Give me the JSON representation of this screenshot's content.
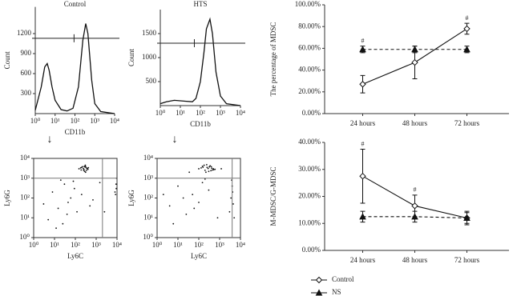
{
  "chart_data": [
    {
      "type": "histogram-curve",
      "title": "Control",
      "xlabel": "CD11b",
      "ylabel": "Count",
      "xscale": "log",
      "x": [
        1,
        2,
        3,
        4,
        5,
        7,
        10,
        20,
        40,
        80,
        150,
        250,
        350,
        450,
        700,
        1000,
        2000,
        10000
      ],
      "values": [
        50,
        400,
        700,
        750,
        650,
        400,
        200,
        60,
        40,
        80,
        400,
        1100,
        1350,
        1200,
        500,
        150,
        30,
        0
      ],
      "xlim": [
        1,
        10000
      ],
      "ylim": [
        0,
        1600
      ],
      "xticks": [
        {
          "value": 1,
          "label": "10⁰"
        },
        {
          "value": 10,
          "label": "10¹"
        },
        {
          "value": 100,
          "label": "10²"
        },
        {
          "value": 1000,
          "label": "10³"
        },
        {
          "value": 10000,
          "label": "10⁴"
        }
      ],
      "yticks": [
        300,
        600,
        900,
        1200
      ],
      "gate": {
        "x": 90,
        "y": 1130
      }
    },
    {
      "type": "histogram-curve",
      "title": "HTS",
      "xlabel": "CD11b",
      "ylabel": "Count",
      "xscale": "log",
      "x": [
        1,
        2,
        5,
        10,
        20,
        40,
        60,
        100,
        150,
        200,
        300,
        400,
        600,
        1000,
        2000,
        10000
      ],
      "values": [
        40,
        80,
        110,
        100,
        90,
        80,
        150,
        500,
        1100,
        1600,
        1800,
        1500,
        700,
        200,
        40,
        0
      ],
      "xlim": [
        1,
        10000
      ],
      "ylim": [
        0,
        2000
      ],
      "xticks": [
        {
          "value": 1,
          "label": "10⁰"
        },
        {
          "value": 10,
          "label": "10¹"
        },
        {
          "value": 100,
          "label": "10²"
        },
        {
          "value": 1000,
          "label": "10³"
        },
        {
          "value": 10000,
          "label": "10⁴"
        }
      ],
      "yticks": [
        500,
        1000,
        1500
      ],
      "gate": {
        "x": 50,
        "y": 1300
      }
    },
    {
      "type": "scatter",
      "xlabel": "Ly6C",
      "ylabel": "Ly6G",
      "xscale": "log",
      "yscale": "log",
      "x": [
        150,
        200,
        250,
        300,
        350,
        400,
        220,
        280,
        320,
        380,
        260,
        180,
        300,
        340,
        240,
        270,
        310,
        420,
        190,
        290,
        3,
        8,
        15,
        30,
        60,
        120,
        5,
        20,
        45,
        90,
        200,
        500,
        12,
        40,
        80,
        8000,
        9000,
        9500,
        8500,
        9200,
        700,
        2500,
        1500,
        25
      ],
      "values": [
        3000,
        3500,
        2500,
        4000,
        3200,
        2800,
        3800,
        2200,
        3600,
        3000,
        2700,
        3300,
        4500,
        2500,
        3100,
        3900,
        2000,
        3400,
        2600,
        3700,
        50,
        200,
        30,
        500,
        100,
        20,
        8,
        800,
        60,
        300,
        150,
        40,
        3,
        15,
        700,
        200,
        500,
        1000,
        150,
        300,
        80,
        20,
        600,
        5
      ],
      "xlim": [
        1,
        10000
      ],
      "ylim": [
        1,
        10000
      ],
      "xticks": [
        {
          "value": 1,
          "label": "10⁰"
        },
        {
          "value": 10,
          "label": "10¹"
        },
        {
          "value": 100,
          "label": "10²"
        },
        {
          "value": 1000,
          "label": "10³"
        },
        {
          "value": 10000,
          "label": "10⁴"
        }
      ],
      "yticks": [
        {
          "value": 1,
          "label": "10⁰"
        },
        {
          "value": 10,
          "label": "10¹"
        },
        {
          "value": 100,
          "label": "10²"
        },
        {
          "value": 1000,
          "label": "10³"
        },
        {
          "value": 10000,
          "label": "10⁴"
        }
      ],
      "gate": {
        "x": 2000,
        "y": 1000
      }
    },
    {
      "type": "scatter",
      "xlabel": "Ly6C",
      "ylabel": "Ly6G",
      "xscale": "log",
      "yscale": "log",
      "x": [
        100,
        150,
        200,
        250,
        300,
        400,
        500,
        600,
        180,
        220,
        350,
        450,
        130,
        280,
        320,
        380,
        160,
        240,
        420,
        520,
        4,
        10,
        25,
        50,
        100,
        200,
        6,
        18,
        60,
        150,
        300,
        800,
        3000,
        3500,
        4000,
        4500,
        5000,
        3800,
        4200,
        2,
        35,
        1200
      ],
      "values": [
        3000,
        4000,
        2500,
        3500,
        2200,
        3800,
        3000,
        2800,
        4500,
        2000,
        4200,
        2600,
        3300,
        3100,
        3700,
        2400,
        3600,
        4800,
        3200,
        2700,
        40,
        400,
        15,
        150,
        60,
        900,
        5,
        100,
        30,
        600,
        250,
        10,
        20,
        100,
        400,
        50,
        10,
        800,
        200,
        150,
        2000,
        3000
      ],
      "xlim": [
        1,
        10000
      ],
      "ylim": [
        1,
        10000
      ],
      "xticks": [
        {
          "value": 1,
          "label": "10⁰"
        },
        {
          "value": 10,
          "label": "10¹"
        },
        {
          "value": 100,
          "label": "10²"
        },
        {
          "value": 1000,
          "label": "10³"
        },
        {
          "value": 10000,
          "label": "10⁴"
        }
      ],
      "yticks": [
        {
          "value": 1,
          "label": "10⁰"
        },
        {
          "value": 10,
          "label": "10¹"
        },
        {
          "value": 100,
          "label": "10²"
        },
        {
          "value": 1000,
          "label": "10³"
        },
        {
          "value": 10000,
          "label": "10⁴"
        }
      ],
      "gate": {
        "x": 4000,
        "y": 1000
      }
    },
    {
      "type": "line",
      "ylabel": "The percentage of MDSC",
      "categories": [
        "24 hours",
        "48 hours",
        "72 hours"
      ],
      "series": [
        {
          "name": "Control",
          "color": "#111111",
          "marker": "diamond",
          "dash": false,
          "values": [
            27,
            47,
            78
          ],
          "errors": [
            8,
            15,
            5
          ]
        },
        {
          "name": "NS",
          "color": "#111111",
          "marker": "triangle",
          "dash": true,
          "values": [
            59,
            59,
            59
          ],
          "errors": [
            3,
            3,
            3
          ]
        }
      ],
      "ylim": [
        0,
        100
      ],
      "yticks": [
        {
          "value": 0,
          "label": "0.00%"
        },
        {
          "value": 20,
          "label": "20.00%"
        },
        {
          "value": 40,
          "label": "40.00%"
        },
        {
          "value": 60,
          "label": "60.00%"
        },
        {
          "value": 80,
          "label": "80.00%"
        },
        {
          "value": 100,
          "label": "100.00%"
        }
      ],
      "annotations": [
        {
          "text": "#",
          "category": "24 hours"
        },
        {
          "text": "#",
          "category": "72 hours"
        }
      ]
    },
    {
      "type": "line",
      "ylabel": "M-MDSC/G-MDSC",
      "categories": [
        "24 hours",
        "48 hours",
        "72 hours"
      ],
      "series": [
        {
          "name": "Control",
          "color": "#111111",
          "marker": "diamond",
          "dash": false,
          "values": [
            27.5,
            16.5,
            12
          ],
          "errors": [
            10,
            4,
            2.5
          ]
        },
        {
          "name": "NS",
          "color": "#111111",
          "marker": "triangle",
          "dash": true,
          "values": [
            12.5,
            12.5,
            12
          ],
          "errors": [
            2,
            2,
            2
          ]
        }
      ],
      "ylim": [
        0,
        40
      ],
      "yticks": [
        {
          "value": 0,
          "label": "0.00%"
        },
        {
          "value": 10,
          "label": "10.00%"
        },
        {
          "value": 20,
          "label": "20.00%"
        },
        {
          "value": 30,
          "label": "30.00%"
        },
        {
          "value": 40,
          "label": "40.00%"
        }
      ],
      "annotations": [
        {
          "text": "#",
          "category": "24 hours"
        },
        {
          "text": "#",
          "category": "48 hours"
        }
      ],
      "legend": "bottom-left"
    }
  ]
}
